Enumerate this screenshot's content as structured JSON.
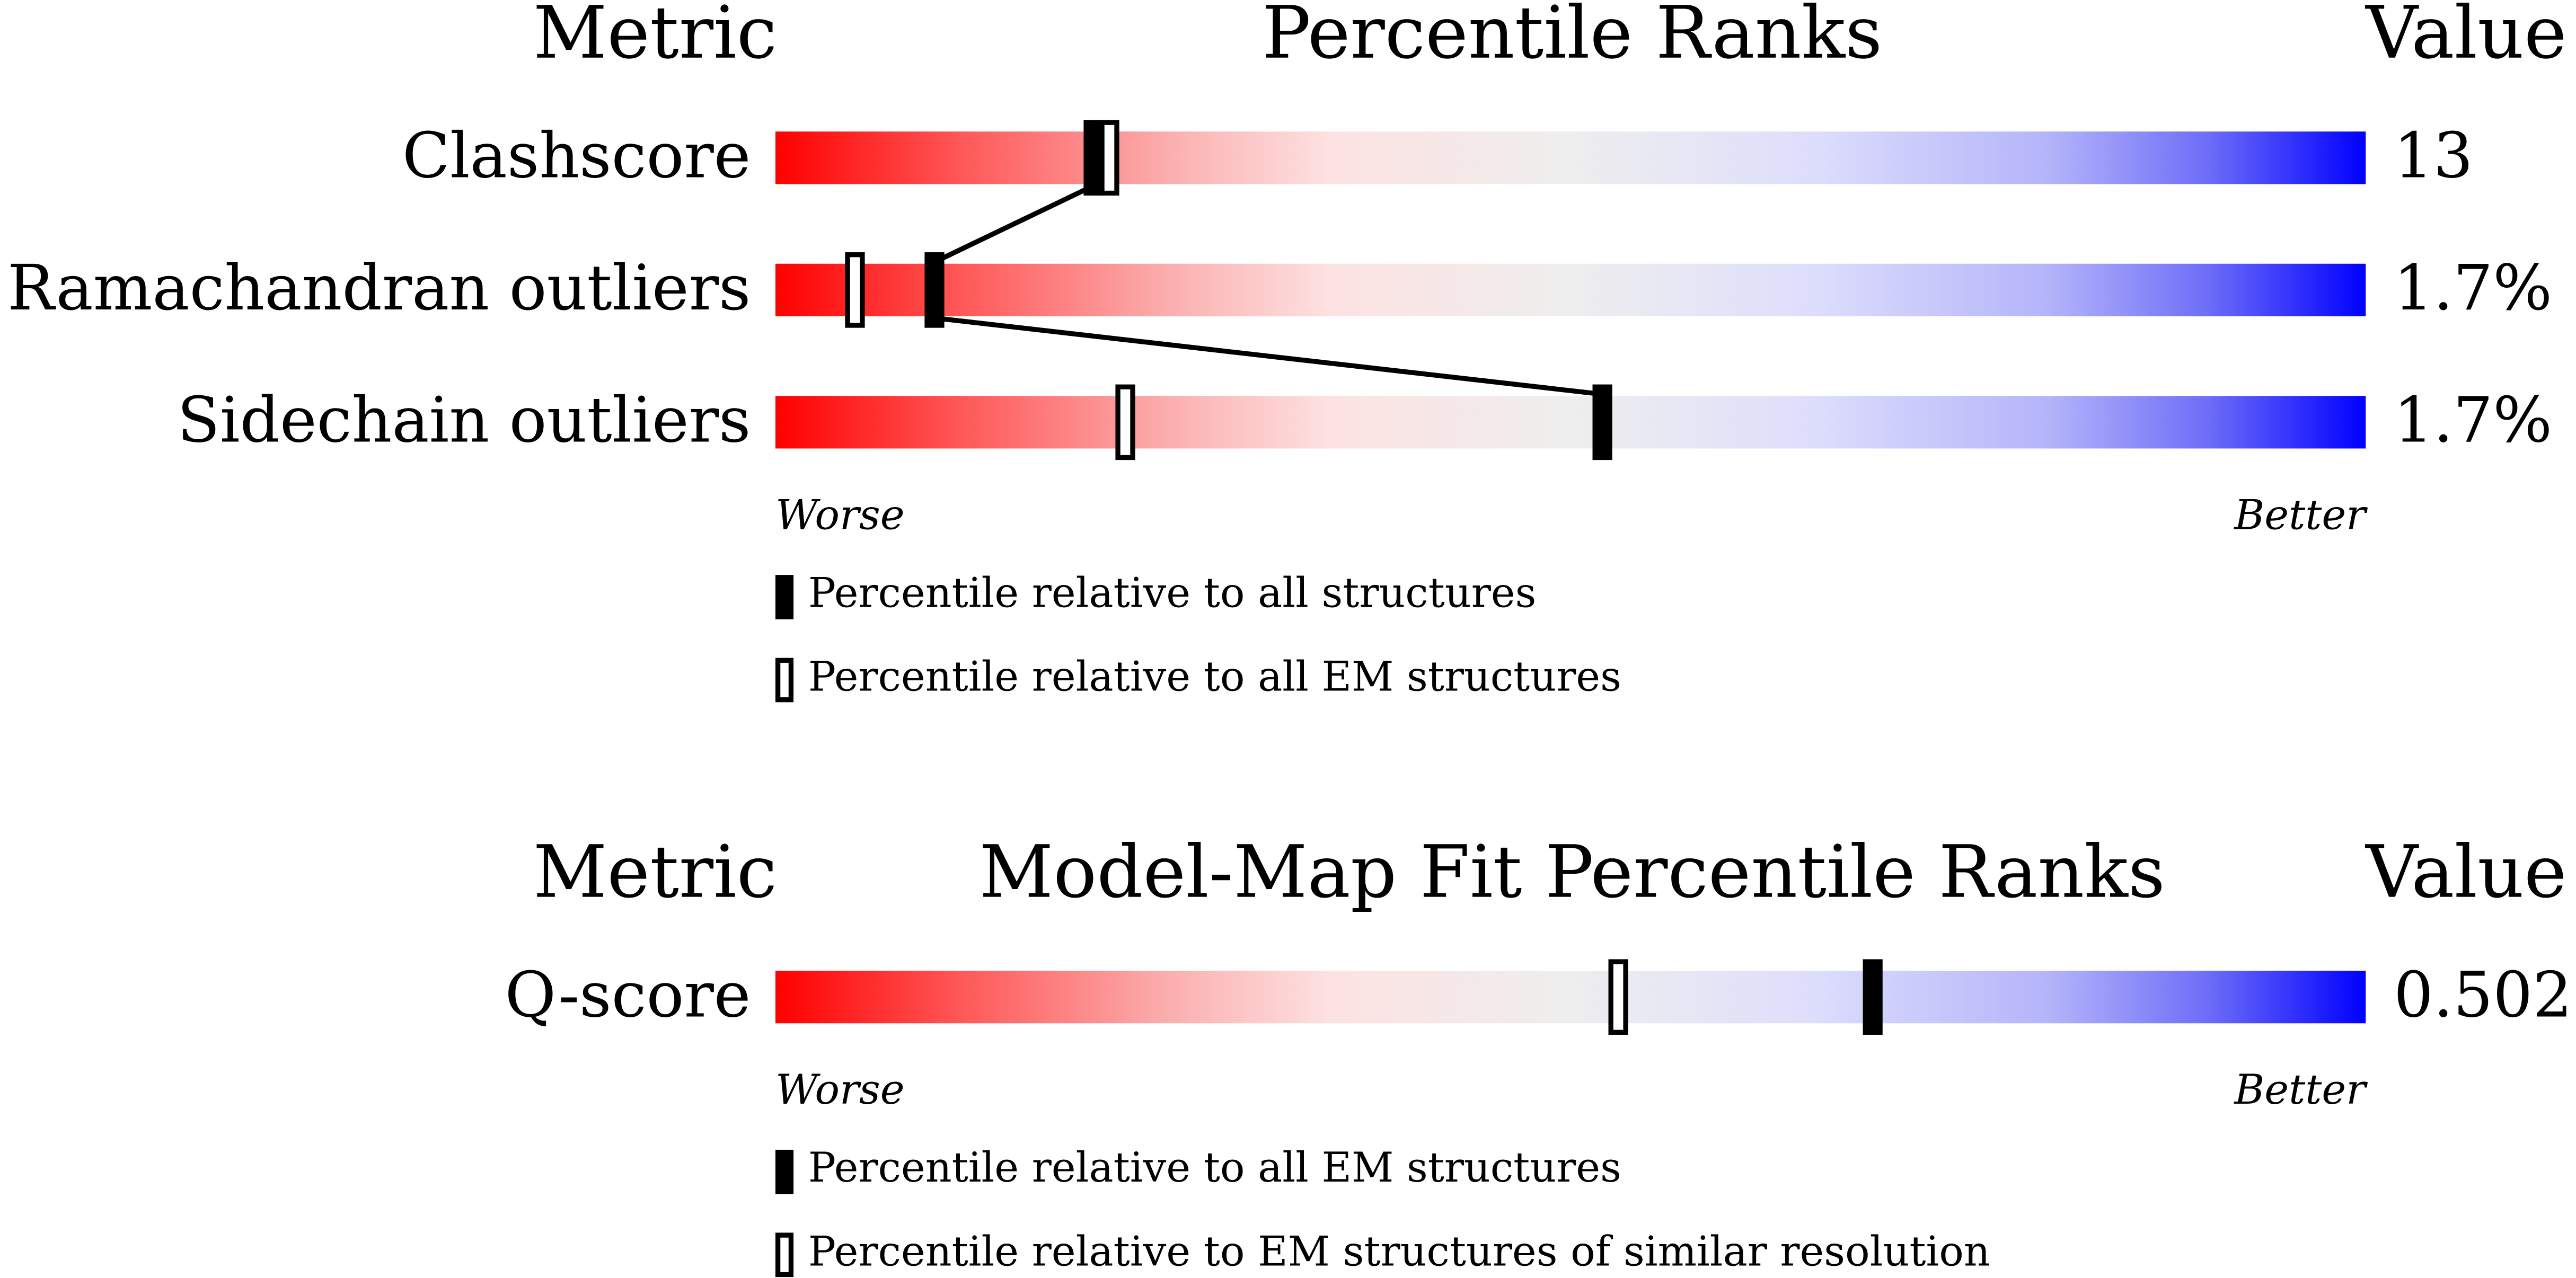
{
  "percentile_range": [
    0,
    100
  ],
  "panels": [
    {
      "header": {
        "metric": "Metric",
        "title": "Percentile Ranks",
        "value": "Value"
      },
      "rows": [
        {
          "metric": "Clashscore",
          "value": "13",
          "percentile_filled": 20,
          "percentile_open": 21
        },
        {
          "metric": "Ramachandran outliers",
          "value": "1.7%",
          "percentile_filled": 10,
          "percentile_open": 5
        },
        {
          "metric": "Sidechain outliers",
          "value": "1.7%",
          "percentile_filled": 52,
          "percentile_open": 22
        }
      ],
      "scale": {
        "worse": "Worse",
        "better": "Better"
      },
      "legend": {
        "filled": "Percentile relative to all structures",
        "open": "Percentile relative to all EM structures"
      }
    },
    {
      "header": {
        "metric": "Metric",
        "title": "Model-Map Fit Percentile Ranks",
        "value": "Value"
      },
      "rows": [
        {
          "metric": "Q-score",
          "value": "0.502",
          "percentile_filled": 69,
          "percentile_open": 53
        }
      ],
      "scale": {
        "worse": "Worse",
        "better": "Better"
      },
      "legend": {
        "filled": "Percentile relative to all EM structures",
        "open": "Percentile relative to EM structures of similar resolution"
      }
    }
  ]
}
